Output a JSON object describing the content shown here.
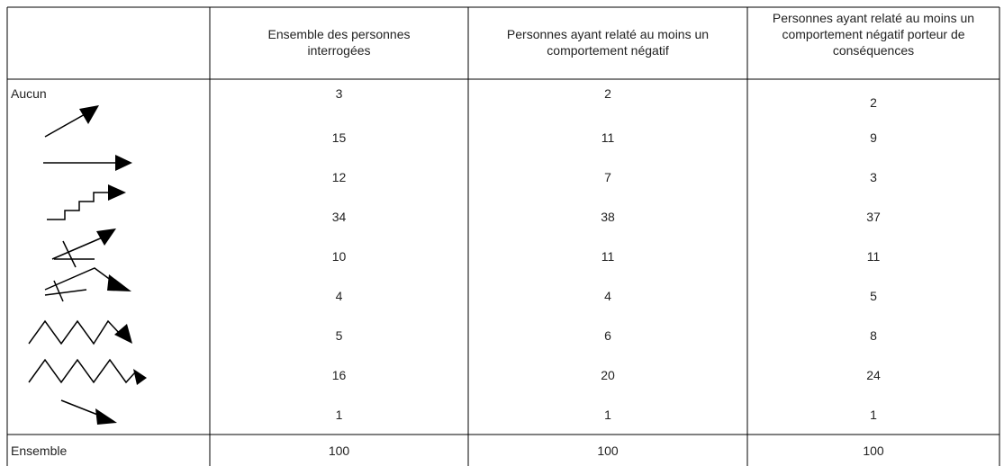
{
  "table": {
    "columns": [
      "Ensemble des personnes interrogées",
      "Personnes ayant relaté au moins un comportement négatif",
      "Personnes ayant relaté au moins un comportement négatif porteur de conséquences"
    ],
    "rows": [
      {
        "label": "Aucun",
        "values": [
          3,
          2,
          2
        ]
      },
      {
        "values": [
          15,
          11,
          9
        ]
      },
      {
        "values": [
          12,
          7,
          3
        ]
      },
      {
        "values": [
          34,
          38,
          37
        ]
      },
      {
        "values": [
          10,
          11,
          11
        ]
      },
      {
        "values": [
          4,
          4,
          5
        ]
      },
      {
        "values": [
          5,
          6,
          8
        ]
      },
      {
        "values": [
          16,
          20,
          24
        ]
      },
      {
        "values": [
          1,
          1,
          1
        ]
      }
    ],
    "total": {
      "label": "Ensemble",
      "values": [
        100,
        100,
        100
      ]
    }
  }
}
